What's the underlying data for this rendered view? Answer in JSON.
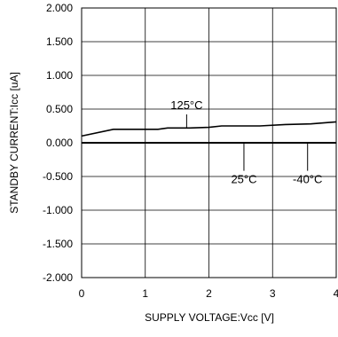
{
  "chart_data": {
    "type": "line",
    "xlabel": "SUPPLY VOLTAGE:Vcc [V]",
    "ylabel": "STANDBY CURRENT:Icc [uA]",
    "xlim": [
      0,
      4
    ],
    "ylim": [
      -2.0,
      2.0
    ],
    "x_ticks": [
      "0",
      "1",
      "2",
      "3",
      "4"
    ],
    "y_ticks": [
      "2.000",
      "1.500",
      "1.000",
      "0.500",
      "0.000",
      "-0.500",
      "-1.000",
      "-1.500",
      "-2.000"
    ],
    "grid": true,
    "series": [
      {
        "name": "125°C",
        "x": [
          0,
          0.5,
          1.2,
          1.35,
          1.7,
          2.0,
          2.2,
          2.8,
          3.2,
          3.6,
          4.0
        ],
        "y": [
          0.1,
          0.2,
          0.2,
          0.22,
          0.22,
          0.23,
          0.25,
          0.25,
          0.27,
          0.28,
          0.31
        ]
      },
      {
        "name": "25°C",
        "x": [
          0,
          4
        ],
        "y": [
          0.0,
          0.0
        ]
      },
      {
        "name": "-40°C",
        "x": [
          0,
          4
        ],
        "y": [
          0.0,
          0.0
        ]
      }
    ],
    "annotations": [
      {
        "text": "125°C",
        "point_x": 1.65,
        "point_y": 0.22,
        "label_x": 1.65,
        "label_y": 0.5
      },
      {
        "text": "25°C",
        "point_x": 2.55,
        "point_y": 0.0,
        "label_x": 2.55,
        "label_y": -0.6
      },
      {
        "text": "-40°C",
        "point_x": 3.55,
        "point_y": 0.0,
        "label_x": 3.55,
        "label_y": -0.6
      }
    ]
  }
}
